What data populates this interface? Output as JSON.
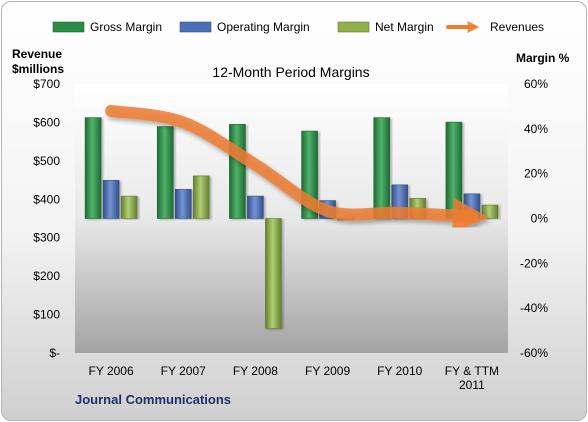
{
  "chart_data": {
    "type": "bar",
    "title": "12-Month Period Margins",
    "left_axis_title": [
      "Revenue",
      "$millions"
    ],
    "right_axis_title": "Margin %",
    "footer": "Journal Communications",
    "categories": [
      "FY 2006",
      "FY 2007",
      "FY 2008",
      "FY 2009",
      "FY 2010",
      "FY & TTM\n2011"
    ],
    "left_axis": {
      "ticks": [
        0,
        100,
        200,
        300,
        400,
        500,
        600,
        700
      ],
      "tick_labels": [
        "$-",
        "$100",
        "$200",
        "$300",
        "$400",
        "$500",
        "$600",
        "$700"
      ],
      "ylim": [
        0,
        700
      ]
    },
    "right_axis": {
      "ticks": [
        -60,
        -40,
        -20,
        0,
        20,
        40,
        60
      ],
      "tick_labels": [
        "-60%",
        "-40%",
        "-20%",
        "0%",
        "20%",
        "40%",
        "60%"
      ],
      "ylim": [
        -60,
        60
      ]
    },
    "series": [
      {
        "name": "Gross Margin",
        "type": "bar",
        "axis": "right",
        "color": "#2e8b46",
        "values": [
          45,
          41,
          42,
          39,
          45,
          43
        ]
      },
      {
        "name": "Operating Margin",
        "type": "bar",
        "axis": "right",
        "color": "#4a6fb5",
        "values": [
          17,
          13,
          10,
          8,
          15,
          11
        ]
      },
      {
        "name": "Net Margin",
        "type": "bar",
        "axis": "right",
        "color": "#8fb04a",
        "values": [
          10,
          19,
          -49,
          0,
          9,
          6
        ]
      },
      {
        "name": "Revenues",
        "type": "line",
        "axis": "left",
        "color": "#ed7d31",
        "values": [
          630,
          600,
          490,
          370,
          365,
          355
        ]
      }
    ],
    "legend_position": "top",
    "grid": false
  }
}
